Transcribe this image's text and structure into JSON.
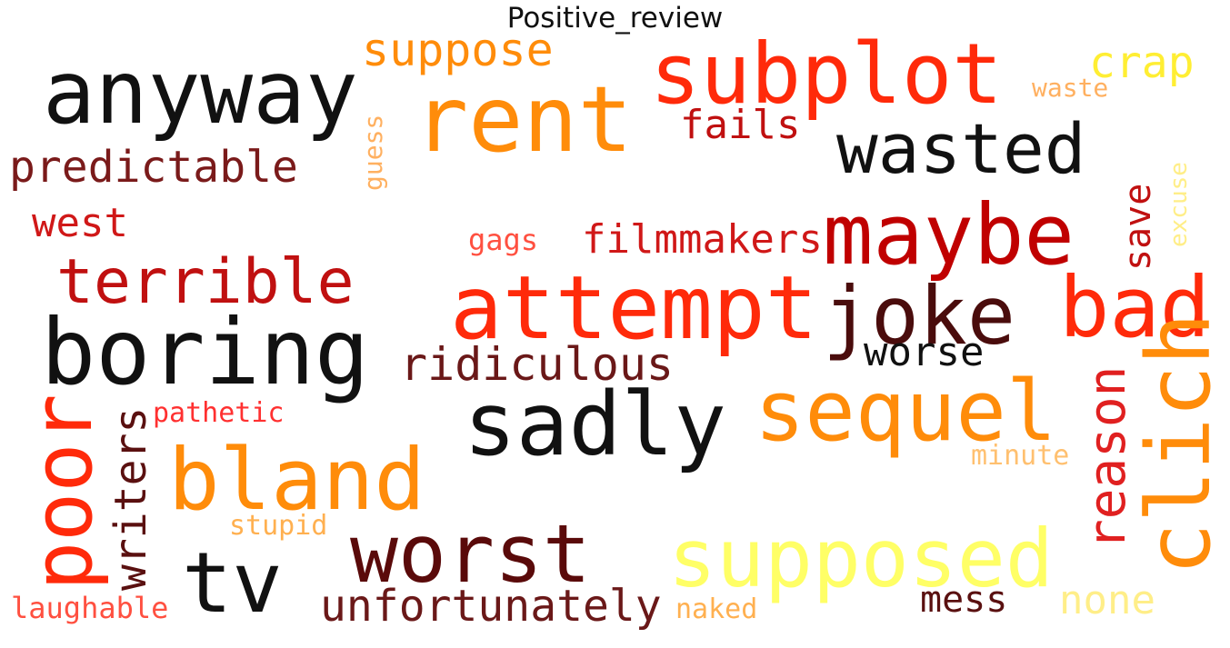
{
  "title": "Positive_review",
  "words": [
    {
      "text": "anyway",
      "color": "#111111"
    },
    {
      "text": "suppose",
      "color": "#ff8c0a"
    },
    {
      "text": "subplot",
      "color": "#ff2a0a"
    },
    {
      "text": "crap",
      "color": "#ffee33"
    },
    {
      "text": "waste",
      "color": "#ffb060"
    },
    {
      "text": "rent",
      "color": "#ff8c0a"
    },
    {
      "text": "fails",
      "color": "#c01010"
    },
    {
      "text": "wasted",
      "color": "#111111"
    },
    {
      "text": "predictable",
      "color": "#7a1a1a"
    },
    {
      "text": "guess",
      "color": "#ffb060"
    },
    {
      "text": "save",
      "color": "#c01010"
    },
    {
      "text": "excuse",
      "color": "#ffee88"
    },
    {
      "text": "west",
      "color": "#d01818"
    },
    {
      "text": "gags",
      "color": "#ff5040"
    },
    {
      "text": "filmmakers",
      "color": "#d01818"
    },
    {
      "text": "maybe",
      "color": "#c00000"
    },
    {
      "text": "terrible",
      "color": "#c01010"
    },
    {
      "text": "attempt",
      "color": "#ff2a0a"
    },
    {
      "text": "joke",
      "color": "#4a0c0c"
    },
    {
      "text": "bad",
      "color": "#ff2a0a"
    },
    {
      "text": "boring",
      "color": "#111111"
    },
    {
      "text": "worse",
      "color": "#111111"
    },
    {
      "text": "ridiculous",
      "color": "#6a1818"
    },
    {
      "text": "clich",
      "color": "#ff8c0a"
    },
    {
      "text": "sequel",
      "color": "#ff8c0a"
    },
    {
      "text": "pathetic",
      "color": "#ff3030"
    },
    {
      "text": "sadly",
      "color": "#111111"
    },
    {
      "text": "reason",
      "color": "#e02020"
    },
    {
      "text": "poor",
      "color": "#ff2a0a"
    },
    {
      "text": "writers",
      "color": "#5a1010"
    },
    {
      "text": "bland",
      "color": "#ff8c0a"
    },
    {
      "text": "minute",
      "color": "#ffc070"
    },
    {
      "text": "stupid",
      "color": "#ffb050"
    },
    {
      "text": "worst",
      "color": "#5a0a0a"
    },
    {
      "text": "supposed",
      "color": "#ffff66"
    },
    {
      "text": "tv",
      "color": "#111111"
    },
    {
      "text": "mess",
      "color": "#5a1010"
    },
    {
      "text": "none",
      "color": "#ffee88"
    },
    {
      "text": "unfortunately",
      "color": "#6a1818"
    },
    {
      "text": "naked",
      "color": "#ffb050"
    },
    {
      "text": "laughable",
      "color": "#ff5040"
    }
  ]
}
